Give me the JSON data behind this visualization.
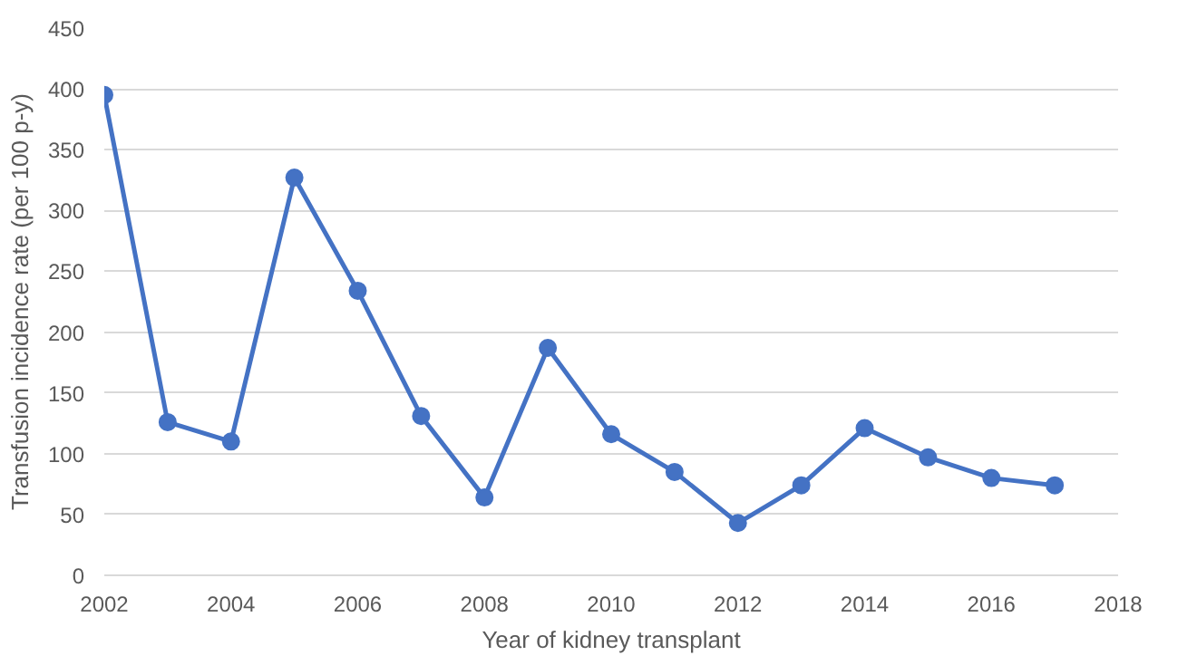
{
  "chart_data": {
    "type": "line",
    "xlabel": "Year of kidney transplant",
    "ylabel": "Transfusion incidence rate (per 100 p-y)",
    "x": [
      2002,
      2003,
      2004,
      2005,
      2006,
      2007,
      2008,
      2009,
      2010,
      2011,
      2012,
      2013,
      2014,
      2015,
      2016,
      2017
    ],
    "series": [
      {
        "color": "#4472c4",
        "values": [
          395,
          126,
          110,
          327,
          234,
          131,
          64,
          187,
          116,
          85,
          43,
          74,
          121,
          97,
          80,
          74
        ]
      }
    ],
    "xlim": [
      2002,
      2018
    ],
    "xticks": [
      2002,
      2004,
      2006,
      2008,
      2010,
      2012,
      2014,
      2016,
      2018
    ],
    "ylim": [
      0,
      450
    ],
    "yticks": [
      0,
      50,
      100,
      150,
      200,
      250,
      300,
      350,
      400,
      450
    ],
    "grid": "y",
    "marker": "circle",
    "line_style": "solid"
  }
}
